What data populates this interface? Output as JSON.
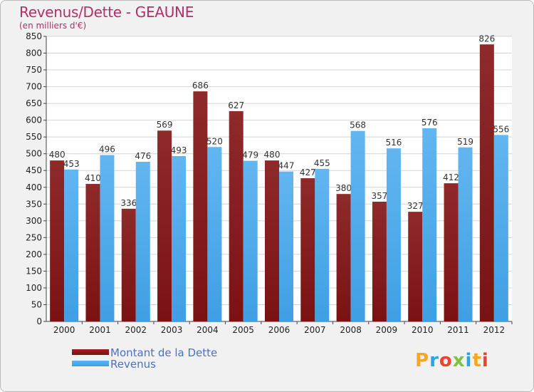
{
  "title": "Revenus/Dette - GEAUNE",
  "subtitle": "(en milliers d'€)",
  "logo": {
    "text": "Proxiti",
    "colors": [
      "#f5a623",
      "#2aa5e0",
      "#e8442e",
      "#7dc242",
      "#2aa5e0",
      "#f5a623",
      "#e8442e"
    ]
  },
  "colors": {
    "dette": "#7a1212",
    "revenus": "#3f9fe3",
    "title": "#b0306a",
    "legend_text": "#4a6fd0"
  },
  "chart_data": {
    "type": "bar",
    "categories": [
      "2000",
      "2001",
      "2002",
      "2003",
      "2004",
      "2005",
      "2006",
      "2007",
      "2008",
      "2009",
      "2010",
      "2011",
      "2012"
    ],
    "series": [
      {
        "name": "Montant de la Dette",
        "values": [
          480,
          410,
          336,
          569,
          686,
          627,
          480,
          427,
          380,
          357,
          327,
          412,
          826
        ]
      },
      {
        "name": "Revenus",
        "values": [
          453,
          496,
          476,
          493,
          520,
          479,
          447,
          455,
          568,
          516,
          576,
          519,
          556
        ]
      }
    ],
    "ylim": [
      0,
      850
    ],
    "yticks": [
      0,
      50,
      100,
      150,
      200,
      250,
      300,
      350,
      400,
      450,
      500,
      550,
      600,
      650,
      700,
      750,
      800,
      850
    ],
    "grid": true,
    "legend_position": "bottom-left"
  }
}
